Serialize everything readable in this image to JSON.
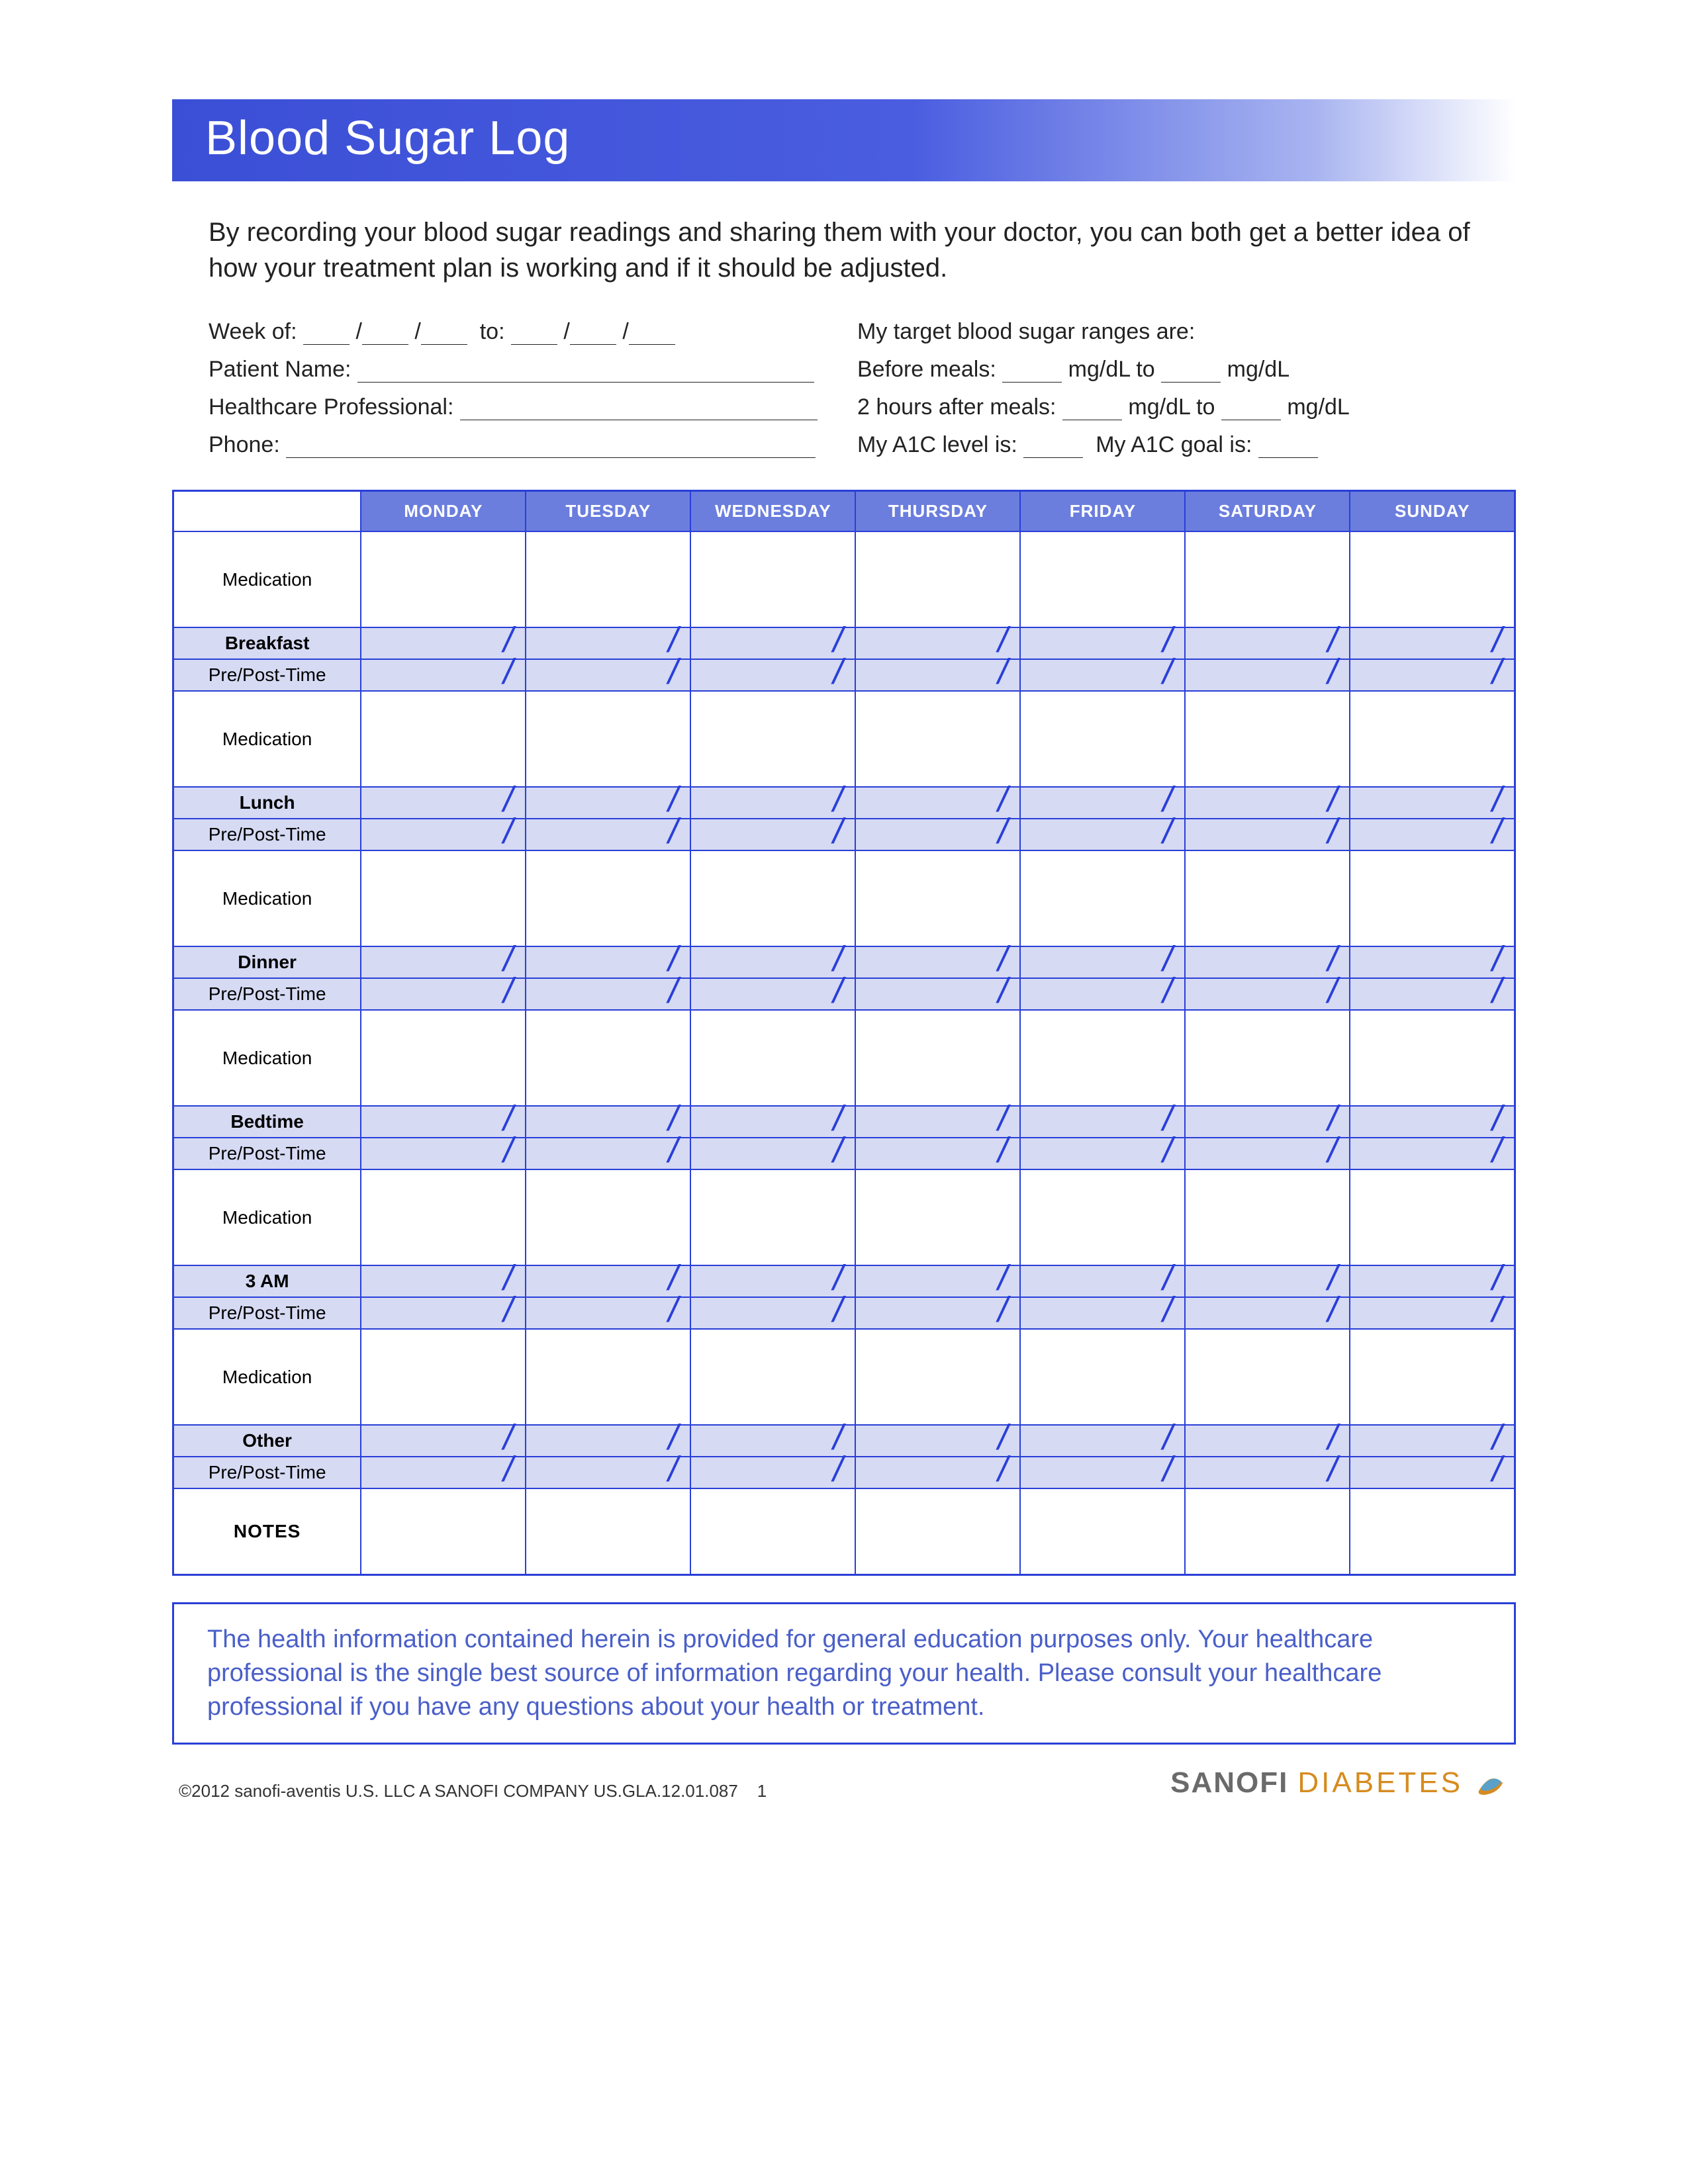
{
  "title": "Blood Sugar Log",
  "intro": "By recording your blood sugar readings and sharing them with your doctor, you can both get a better idea of how your treatment plan is working and if it should be adjusted.",
  "form": {
    "week_of": "Week of:",
    "to": "to:",
    "patient_name": "Patient Name:",
    "healthcare_pro": "Healthcare Professional:",
    "phone": "Phone:",
    "target_ranges": "My target blood sugar ranges are:",
    "before_meals": "Before meals:",
    "mgdl_to": "mg/dL to",
    "mgdl": "mg/dL",
    "after_meals": "2 hours after meals:",
    "a1c_level": "My A1C level is:",
    "a1c_goal": "My A1C goal is:"
  },
  "days": [
    "MONDAY",
    "TUESDAY",
    "WEDNESDAY",
    "THURSDAY",
    "FRIDAY",
    "SATURDAY",
    "SUNDAY"
  ],
  "rows": {
    "medication": "Medication",
    "prepost": "Pre/Post-Time",
    "breakfast": "Breakfast",
    "lunch": "Lunch",
    "dinner": "Dinner",
    "bedtime": "Bedtime",
    "threeam": "3 AM",
    "other": "Other",
    "notes": "NOTES"
  },
  "disclaimer": "The health information contained herein is provided for general education purposes only. Your healthcare professional is the single best source of information regarding your health. Please consult your healthcare professional if you have any questions about your health or treatment.",
  "footer": {
    "copyright": "©2012 sanofi-aventis U.S. LLC  A SANOFI COMPANY  US.GLA.12.01.087",
    "page_num": "1",
    "brand1": "SANOFI",
    "brand2": "DIABETES"
  },
  "colors": {
    "primary": "#2a3fd8",
    "header_fill": "#6b7ede",
    "meal_fill": "#d6daf3",
    "disclaimer_text": "#4a5fc8"
  }
}
